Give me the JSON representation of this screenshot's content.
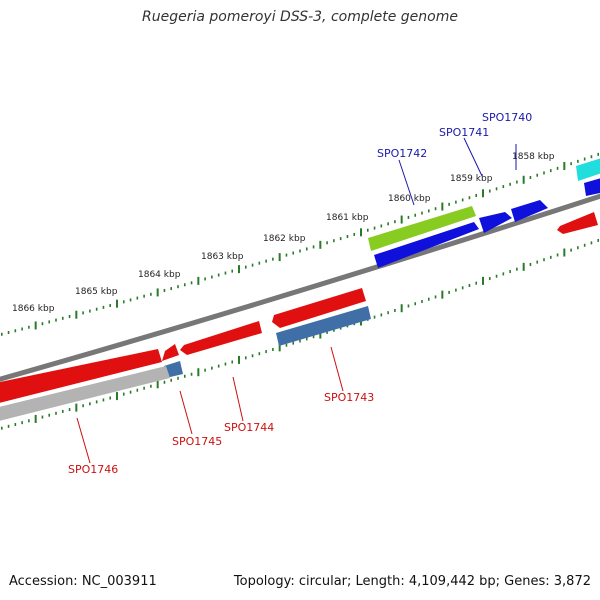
{
  "title": "Ruegeria pomeroyi DSS-3, complete genome",
  "footer": {
    "accession": "Accession: NC_003911",
    "summary": "Topology: circular; Length: 4,109,442 bp; Genes: 3,872"
  },
  "colors": {
    "backbone": "#777777",
    "ticks": "#2a7a2a",
    "forward_gene": "#1010dd",
    "reverse_gene": "#e01010",
    "forward_label": "#1a1aaa",
    "reverse_label": "#cc1010",
    "feature_green": "#88cc22",
    "feature_blue": "#3f6fa6",
    "feature_cyan": "#22dddd",
    "feature_gray": "#b3b3b3"
  },
  "scale_labels": [
    "1858 kbp",
    "1859 kbp",
    "1860 kbp",
    "1861 kbp",
    "1862 kbp",
    "1863 kbp",
    "1864 kbp",
    "1865 kbp",
    "1866 kbp"
  ],
  "gene_labels_forward": [
    "SPO1740",
    "SPO1741",
    "SPO1742"
  ],
  "gene_labels_reverse": [
    "SPO1743",
    "SPO1744",
    "SPO1745",
    "SPO1746"
  ]
}
